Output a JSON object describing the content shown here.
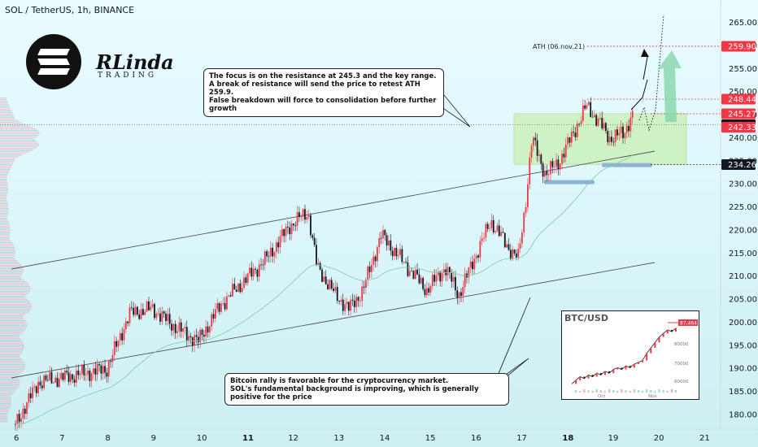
{
  "header": {
    "title": "SOL / TetherUS, 1h, BINANCE"
  },
  "brand": {
    "name": "RLinda",
    "sub": "TRADING"
  },
  "colors": {
    "up": "#f23645",
    "down": "#131722",
    "accent": "#f23645",
    "zone": "#c8f0b4",
    "support": "#8fb3d8"
  },
  "notes": {
    "top": [
      "The focus is on the resistance at 245.3 and the key range.",
      "A break of resistance will send the price to retest ATH 259.9.",
      "False breakdown will force to consolidation before further growth"
    ],
    "bottom": [
      "Bitcoin rally is favorable for the cryptocurrency market.",
      "SOL's fundamental background is improving, which is generally positive for the price"
    ]
  },
  "ath_label": "ATH (06.nov.21)",
  "chart_data": {
    "type": "line",
    "title": "SOL / TetherUS, 1h, BINANCE",
    "ylim": [
      176,
      268
    ],
    "y_ticks": [
      180,
      185,
      190,
      195,
      200,
      205,
      210,
      215,
      220,
      225,
      230,
      235,
      240,
      245,
      250,
      255,
      260,
      265
    ],
    "x_ticks": [
      "6",
      "7",
      "8",
      "9",
      "10",
      "11",
      "12",
      "13",
      "14",
      "15",
      "16",
      "17",
      "18",
      "19",
      "20",
      "21"
    ],
    "x_ticks_bold": [
      "11",
      "18"
    ],
    "price_labels": [
      {
        "value": 259.9,
        "text": "259.90",
        "style": "red"
      },
      {
        "value": 248.44,
        "text": "248.44",
        "style": "red"
      },
      {
        "value": 245.27,
        "text": "245.27",
        "style": "red"
      },
      {
        "value": 242.89,
        "text": "242.89",
        "style": "dark"
      },
      {
        "value": 242.33,
        "text": "242.33",
        "style": "red"
      },
      {
        "value": 234.26,
        "text": "234.26",
        "style": "dark"
      }
    ],
    "series": [
      {
        "name": "SOL",
        "x": [
          6.0,
          6.5,
          7.0,
          7.5,
          8.0,
          8.5,
          9.0,
          9.5,
          10.0,
          10.5,
          11.0,
          11.5,
          12.0,
          12.4,
          12.6,
          13.0,
          13.3,
          13.6,
          14.0,
          14.5,
          15.0,
          15.4,
          15.7,
          16.0,
          16.4,
          16.8,
          17.0,
          17.15,
          17.3,
          17.6,
          17.9,
          18.2,
          18.5,
          18.8,
          19.0,
          19.3,
          19.5
        ],
        "values": [
          178,
          187,
          188,
          189,
          190,
          202,
          203,
          199,
          196,
          204,
          209,
          214,
          221,
          224,
          212,
          206,
          203,
          207,
          219,
          213,
          207,
          212,
          206,
          213,
          222,
          216,
          214,
          225,
          240,
          232,
          235,
          241,
          247,
          243,
          240,
          241,
          245
        ]
      }
    ]
  },
  "inset": {
    "title": "BTC/USD",
    "ylabel": "",
    "y_ticks": [
      "80000",
      "70000",
      "60000"
    ],
    "x_ticks": [
      "Oct",
      "Nov"
    ],
    "values": [
      58,
      60,
      62,
      61,
      63,
      62,
      64,
      63,
      65,
      64,
      66,
      67,
      66,
      68,
      67,
      69,
      70,
      71,
      75,
      78,
      81,
      84,
      86,
      88,
      87,
      89
    ],
    "last_price": "87,464"
  }
}
